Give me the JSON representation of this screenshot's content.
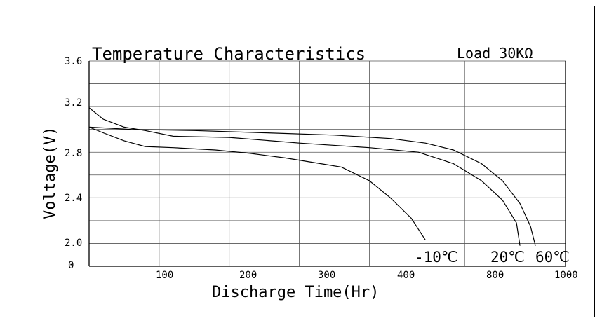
{
  "chart_data": {
    "type": "line",
    "title": "Temperature Characteristics",
    "subtitle": "Load 30KΩ",
    "xlabel": "Discharge Time(Hr)",
    "ylabel": "Voltage(V)",
    "x_ticks": [
      "100",
      "200",
      "300",
      "400",
      "800",
      "1000"
    ],
    "x_origin_label": "0",
    "y_ticks": [
      "3.6",
      "3.2",
      "2.8",
      "2.4",
      "2.0"
    ],
    "ylim": [
      1.8,
      3.6
    ],
    "grid": true,
    "curve_labels": [
      "-10℃",
      "20℃",
      "60℃"
    ],
    "series": [
      {
        "label": "-10℃",
        "points": [
          [
            0,
            3.02
          ],
          [
            20,
            2.97
          ],
          [
            50,
            2.9
          ],
          [
            80,
            2.85
          ],
          [
            120,
            2.84
          ],
          [
            180,
            2.82
          ],
          [
            230,
            2.79
          ],
          [
            280,
            2.75
          ],
          [
            330,
            2.7
          ],
          [
            360,
            2.67
          ],
          [
            400,
            2.55
          ],
          [
            430,
            2.4
          ],
          [
            460,
            2.22
          ],
          [
            480,
            2.03
          ]
        ]
      },
      {
        "label": "20℃",
        "points": [
          [
            0,
            3.19
          ],
          [
            20,
            3.09
          ],
          [
            50,
            3.02
          ],
          [
            80,
            2.99
          ],
          [
            120,
            2.94
          ],
          [
            200,
            2.93
          ],
          [
            300,
            2.88
          ],
          [
            400,
            2.84
          ],
          [
            470,
            2.8
          ],
          [
            520,
            2.7
          ],
          [
            560,
            2.55
          ],
          [
            590,
            2.38
          ],
          [
            610,
            2.18
          ],
          [
            615,
            1.98
          ]
        ]
      },
      {
        "label": "60℃",
        "points": [
          [
            0,
            3.02
          ],
          [
            60,
            3.0
          ],
          [
            150,
            2.99
          ],
          [
            250,
            2.97
          ],
          [
            350,
            2.95
          ],
          [
            430,
            2.92
          ],
          [
            480,
            2.88
          ],
          [
            520,
            2.82
          ],
          [
            560,
            2.7
          ],
          [
            590,
            2.55
          ],
          [
            615,
            2.35
          ],
          [
            630,
            2.15
          ],
          [
            637,
            1.98
          ]
        ]
      }
    ]
  }
}
